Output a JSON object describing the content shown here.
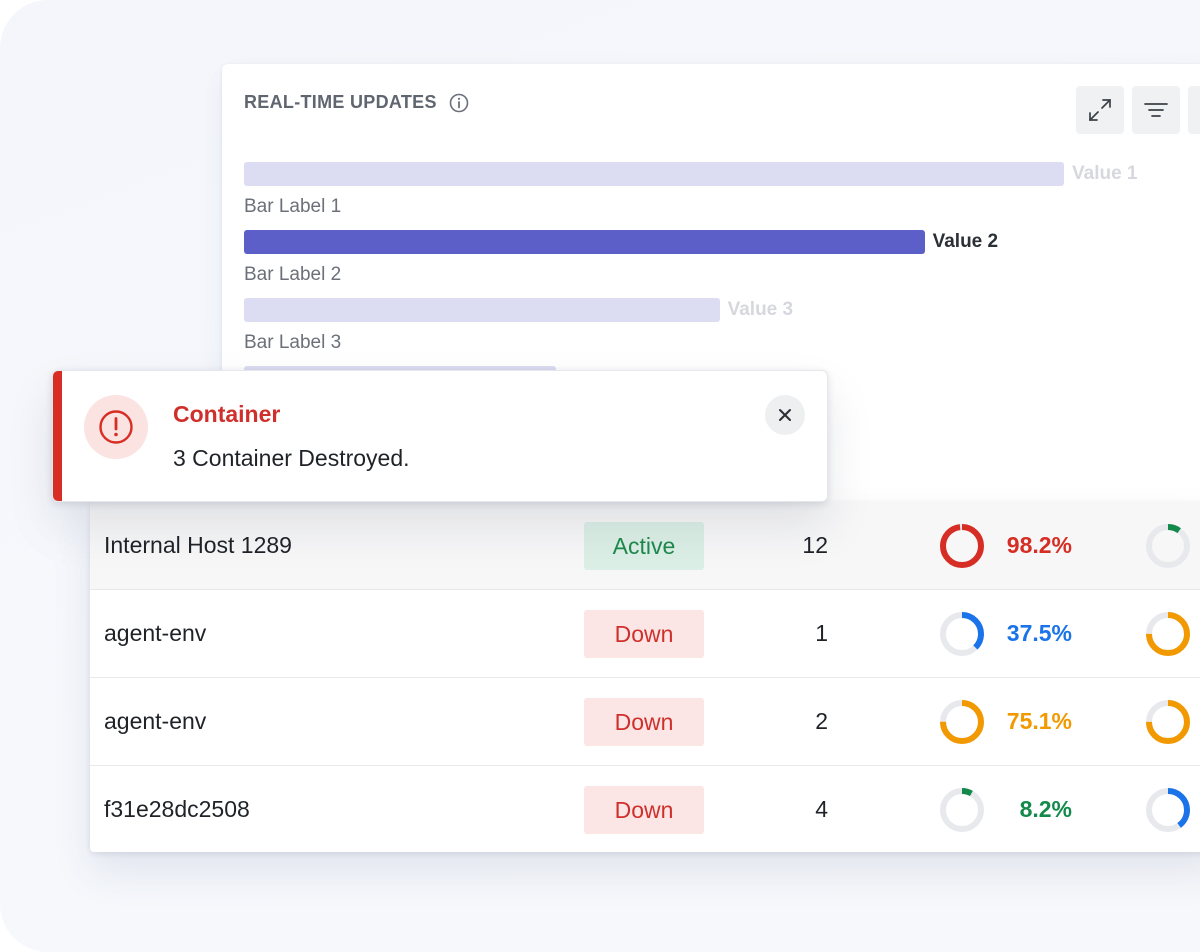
{
  "chart_card": {
    "title": "REAL-TIME UPDATES",
    "tools": [
      "expand-icon",
      "filter-icon"
    ]
  },
  "chart_data": {
    "type": "bar",
    "orientation": "horizontal",
    "categories": [
      "Bar Label 1",
      "Bar Label 2",
      "Bar Label 3"
    ],
    "value_labels": [
      "Value 1",
      "Value 2",
      "Value 3"
    ],
    "values": [
      100,
      83,
      58
    ],
    "highlighted_index": 1,
    "colors": {
      "highlight": "#5b5fc7",
      "muted": "#dcdcf2",
      "muted_label": "#d6d8dd",
      "highlight_label": "#2b2f36"
    }
  },
  "toast": {
    "title": "Container",
    "message": "3 Container Destroyed.",
    "icon": "alert-circle-icon",
    "close_icon": "close-icon",
    "accent_color": "#d72d24"
  },
  "table": {
    "rows": [
      {
        "name": "Internal Host 1289",
        "status": "Active",
        "status_kind": "active",
        "count": "12",
        "metric1": {
          "pct": "98.2%",
          "value": 0.982,
          "color": "#d62d24"
        },
        "metric2": {
          "value": 0.1,
          "color": "#138a4b"
        }
      },
      {
        "name": "agent-env",
        "status": "Down",
        "status_kind": "down",
        "count": "1",
        "metric1": {
          "pct": "37.5%",
          "value": 0.375,
          "color": "#1a73e8"
        },
        "metric2": {
          "value": 0.75,
          "color": "#f29900"
        }
      },
      {
        "name": "agent-env",
        "status": "Down",
        "status_kind": "down",
        "count": "2",
        "metric1": {
          "pct": "75.1%",
          "value": 0.751,
          "color": "#f29900"
        },
        "metric2": {
          "value": 0.75,
          "color": "#f29900"
        }
      },
      {
        "name": "f31e28dc2508",
        "status": "Down",
        "status_kind": "down",
        "count": "4",
        "metric1": {
          "pct": "8.2%",
          "value": 0.082,
          "color": "#138a4b"
        },
        "metric2": {
          "value": 0.4,
          "color": "#1a73e8"
        }
      }
    ]
  }
}
